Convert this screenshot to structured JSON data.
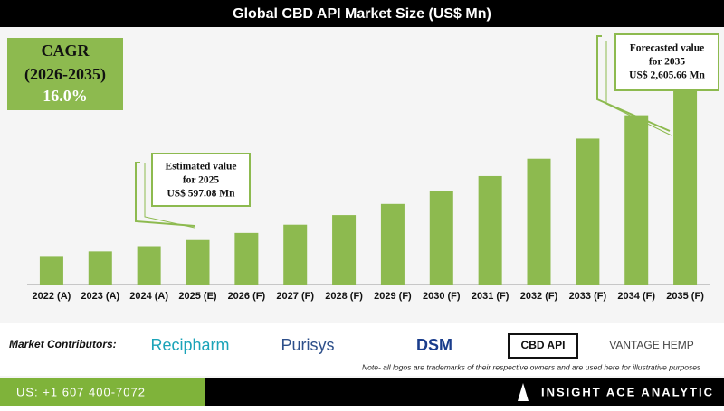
{
  "chart_data": {
    "type": "bar",
    "title": "Global CBD API Market Size (US$ Mn)",
    "categories": [
      "2022 (A)",
      "2023 (A)",
      "2024 (A)",
      "2025 (E)",
      "2026 (F)",
      "2027 (F)",
      "2028 (F)",
      "2029 (F)",
      "2030 (F)",
      "2031 (F)",
      "2032 (F)",
      "2033 (F)",
      "2034 (F)",
      "2035 (F)"
    ],
    "values": [
      383,
      444,
      515,
      597.08,
      692.6,
      803.4,
      932,
      1081,
      1254,
      1455,
      1688,
      1958,
      2271,
      2605.66
    ],
    "color": "#8dba4f",
    "cagr": {
      "title": "CAGR",
      "period": "(2026-2035)",
      "value": "16.0%"
    },
    "annotations": [
      {
        "lines": [
          "Estimated value",
          "for 2025",
          "US$ 597.08 Mn"
        ]
      },
      {
        "lines": [
          "Forecasted value",
          "for 2035",
          "US$ 2,605.66 Mn"
        ]
      }
    ]
  },
  "footer": {
    "contributors_label": "Market Contributors:",
    "logos": [
      "Recipharm",
      "Purisys",
      "DSM",
      "CBD API",
      "VANTAGE HEMP"
    ],
    "note": "Note- all logos are trademarks of their respective owners and are used here for illustrative purposes",
    "phone": "US: +1 607 400-7072",
    "brand": "INSIGHT ACE ANALYTIC"
  }
}
